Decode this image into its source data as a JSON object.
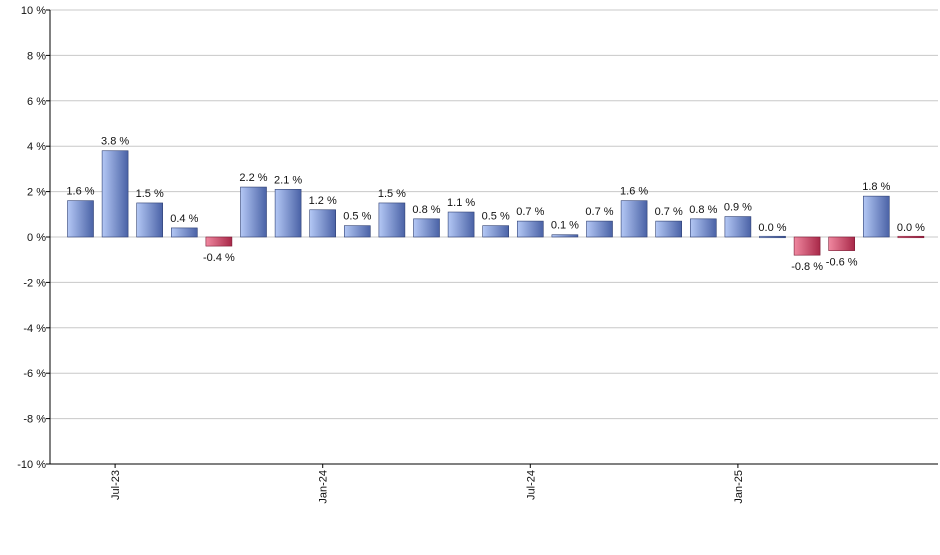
{
  "chart_data": {
    "type": "bar",
    "ylim": [
      -10,
      10
    ],
    "yticks": [
      10,
      8,
      6,
      4,
      2,
      0,
      -2,
      -4,
      -6,
      -8,
      -10
    ],
    "ytick_suffix": " %",
    "grid": true,
    "legend": "none",
    "values": [
      1.6,
      3.8,
      1.5,
      0.4,
      -0.4,
      2.2,
      2.1,
      1.2,
      0.5,
      1.5,
      0.8,
      1.1,
      0.5,
      0.7,
      0.1,
      0.7,
      1.6,
      0.7,
      0.8,
      0.9,
      0.0,
      -0.8,
      -0.6,
      1.8,
      0.0
    ],
    "labels": [
      "1.6 %",
      "3.8 %",
      "1.5 %",
      "0.4 %",
      "-0.4 %",
      "2.2 %",
      "2.1 %",
      "1.2 %",
      "0.5 %",
      "1.5 %",
      "0.8 %",
      "1.1 %",
      "0.5 %",
      "0.7 %",
      "0.1 %",
      "0.7 %",
      "1.6 %",
      "0.7 %",
      "0.8 %",
      "0.9 %",
      "0.0 %",
      "-0.8 %",
      "-0.6 %",
      "1.8 %",
      "0.0 %"
    ],
    "xtick_labels": [
      {
        "index": 1,
        "label": "Jul-23"
      },
      {
        "index": 7,
        "label": "Jan-24"
      },
      {
        "index": 13,
        "label": "Jul-24"
      },
      {
        "index": 19,
        "label": "Jan-25"
      }
    ],
    "colors": {
      "positive_light": "#b4c8f5",
      "positive_dark": "#4a62a6",
      "negative_light": "#f088a0",
      "negative_dark": "#a82848",
      "grid": "#c8c8c8",
      "axis": "#000000"
    }
  }
}
